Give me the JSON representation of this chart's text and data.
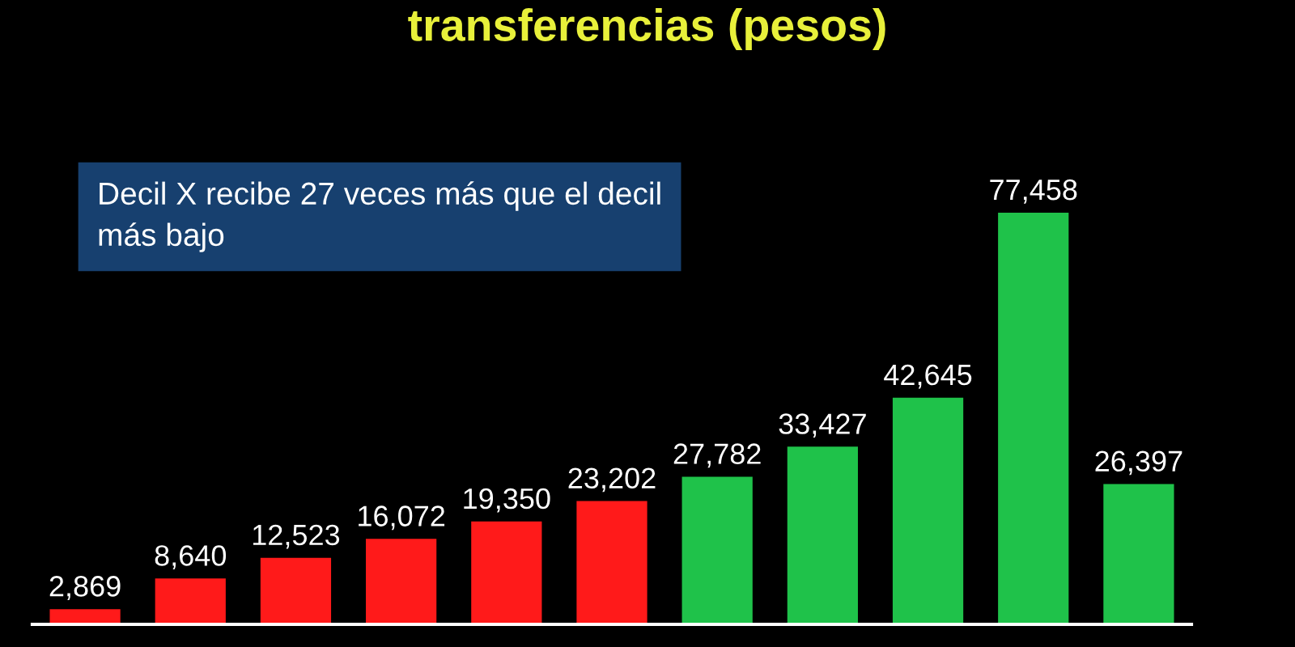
{
  "chart_data": {
    "type": "bar",
    "title": "transferencias (pesos)",
    "categories": [
      null,
      null,
      null,
      null,
      null,
      null,
      null,
      null,
      null,
      null,
      null
    ],
    "values": [
      2869,
      8640,
      12523,
      16072,
      19350,
      23202,
      27782,
      33427,
      42645,
      77458,
      26397
    ],
    "colors": [
      "#ff1a1a",
      "#ff1a1a",
      "#ff1a1a",
      "#ff1a1a",
      "#ff1a1a",
      "#ff1a1a",
      "#1fc24a",
      "#1fc24a",
      "#1fc24a",
      "#1fc24a",
      "#1fc24a"
    ],
    "value_labels": [
      "2,869",
      "8,640",
      "12,523",
      "16,072",
      "19,350",
      "23,202",
      "27,782",
      "33,427",
      "42,645",
      "77,458",
      "26,397"
    ],
    "annotations": [
      "Decil X recibe 27 veces más que el decil\nmás bajo"
    ],
    "tick_labels": false
  }
}
